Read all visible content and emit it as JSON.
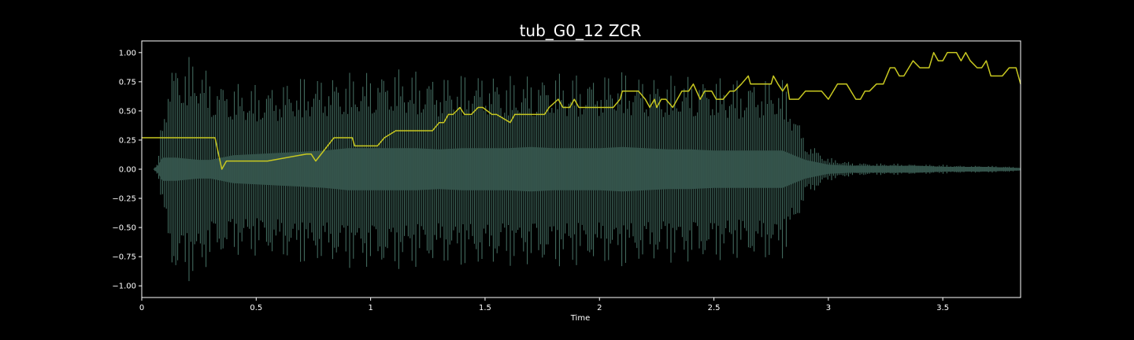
{
  "chart_data": {
    "type": "line",
    "title": "tub_G0_12 ZCR",
    "xlabel": "Time",
    "ylabel": "",
    "xlim": [
      0,
      3.84
    ],
    "ylim": [
      -1.1,
      1.1
    ],
    "x_ticks": [
      0,
      0.5,
      1,
      1.5,
      2,
      2.5,
      3,
      3.5
    ],
    "x_tick_labels": [
      "0",
      "0.5",
      "1",
      "1.5",
      "2",
      "2.5",
      "3",
      "3.5"
    ],
    "y_ticks": [
      1.0,
      0.75,
      0.5,
      0.25,
      0.0,
      -0.25,
      -0.5,
      -0.75,
      -1.0
    ],
    "y_tick_labels": [
      "1.00",
      "0.75",
      "0.50",
      "0.25",
      "0.00",
      "−0.25",
      "−0.50",
      "−0.75",
      "−1.00"
    ],
    "grid": false,
    "colors": {
      "background": "#000000",
      "frame": "#ffffff",
      "waveform": "#4f7f72",
      "waveform_core": "#35544c",
      "zcr": "#c8c820",
      "text": "#ffffff"
    },
    "series": [
      {
        "kind": "waveform-envelope",
        "x": [
          0.0,
          0.05,
          0.07,
          0.09,
          0.12,
          0.15,
          0.2,
          0.25,
          0.3,
          0.4,
          0.5,
          0.6,
          0.7,
          0.8,
          0.9,
          1.0,
          1.1,
          1.2,
          1.3,
          1.4,
          1.5,
          1.6,
          1.7,
          1.8,
          1.9,
          2.0,
          2.1,
          2.2,
          2.3,
          2.4,
          2.5,
          2.6,
          2.7,
          2.8,
          2.85,
          2.9,
          3.0,
          3.1,
          3.2,
          3.3,
          3.4,
          3.5,
          3.6,
          3.7,
          3.84
        ],
        "upper": [
          0.0,
          0.0,
          0.05,
          0.55,
          0.85,
          0.97,
          0.97,
          0.97,
          0.8,
          0.75,
          0.73,
          0.75,
          0.8,
          0.82,
          0.83,
          0.85,
          0.88,
          0.85,
          0.82,
          0.82,
          0.85,
          0.8,
          0.82,
          0.84,
          0.82,
          0.83,
          0.85,
          0.82,
          0.8,
          0.82,
          0.8,
          0.78,
          0.8,
          0.78,
          0.55,
          0.25,
          0.1,
          0.06,
          0.05,
          0.05,
          0.04,
          0.04,
          0.03,
          0.03,
          0.02
        ],
        "lower": [
          0.0,
          0.0,
          -0.05,
          -0.35,
          -0.8,
          -0.97,
          -0.97,
          -0.95,
          -0.8,
          -0.75,
          -0.75,
          -0.78,
          -0.82,
          -0.82,
          -0.85,
          -0.86,
          -0.88,
          -0.85,
          -0.84,
          -0.84,
          -0.86,
          -0.83,
          -0.84,
          -0.85,
          -0.84,
          -0.83,
          -0.85,
          -0.82,
          -0.8,
          -0.82,
          -0.8,
          -0.78,
          -0.8,
          -0.78,
          -0.55,
          -0.25,
          -0.1,
          -0.06,
          -0.05,
          -0.05,
          -0.04,
          -0.04,
          -0.03,
          -0.03,
          -0.02
        ],
        "core_upper": [
          0.0,
          0.0,
          0.03,
          0.1,
          0.1,
          0.1,
          0.09,
          0.08,
          0.08,
          0.12,
          0.13,
          0.14,
          0.15,
          0.16,
          0.18,
          0.18,
          0.18,
          0.18,
          0.17,
          0.18,
          0.18,
          0.18,
          0.19,
          0.18,
          0.18,
          0.18,
          0.19,
          0.18,
          0.17,
          0.17,
          0.16,
          0.16,
          0.16,
          0.16,
          0.12,
          0.08,
          0.04,
          0.03,
          0.03,
          0.03,
          0.03,
          0.02,
          0.02,
          0.02,
          0.01
        ]
      },
      {
        "kind": "zcr-line",
        "x": [
          0.0,
          0.32,
          0.35,
          0.37,
          0.55,
          0.72,
          0.74,
          0.76,
          0.84,
          0.92,
          0.93,
          1.03,
          1.06,
          1.11,
          1.27,
          1.3,
          1.32,
          1.34,
          1.36,
          1.39,
          1.41,
          1.42,
          1.44,
          1.47,
          1.49,
          1.53,
          1.55,
          1.61,
          1.63,
          1.65,
          1.68,
          1.71,
          1.76,
          1.78,
          1.82,
          1.84,
          1.87,
          1.89,
          1.91,
          1.99,
          2.04,
          2.06,
          2.09,
          2.1,
          2.13,
          2.17,
          2.2,
          2.22,
          2.24,
          2.25,
          2.27,
          2.29,
          2.32,
          2.36,
          2.39,
          2.41,
          2.44,
          2.46,
          2.49,
          2.51,
          2.54,
          2.57,
          2.59,
          2.62,
          2.65,
          2.66,
          2.68,
          2.7,
          2.75,
          2.76,
          2.78,
          2.8,
          2.82,
          2.83,
          2.85,
          2.87,
          2.9,
          2.92,
          2.97,
          3.0,
          3.04,
          3.08,
          3.12,
          3.14,
          3.16,
          3.18,
          3.21,
          3.24,
          3.27,
          3.29,
          3.31,
          3.33,
          3.37,
          3.4,
          3.42,
          3.44,
          3.46,
          3.48,
          3.5,
          3.52,
          3.56,
          3.58,
          3.6,
          3.62,
          3.65,
          3.67,
          3.69,
          3.71,
          3.73,
          3.76,
          3.79,
          3.82,
          3.84
        ],
        "y": [
          0.27,
          0.27,
          0.0,
          0.07,
          0.07,
          0.13,
          0.13,
          0.07,
          0.27,
          0.27,
          0.2,
          0.2,
          0.27,
          0.33,
          0.33,
          0.4,
          0.4,
          0.47,
          0.47,
          0.53,
          0.47,
          0.47,
          0.47,
          0.53,
          0.53,
          0.47,
          0.47,
          0.4,
          0.47,
          0.47,
          0.47,
          0.47,
          0.47,
          0.53,
          0.6,
          0.53,
          0.53,
          0.6,
          0.53,
          0.53,
          0.53,
          0.53,
          0.6,
          0.67,
          0.67,
          0.67,
          0.6,
          0.53,
          0.6,
          0.53,
          0.6,
          0.6,
          0.53,
          0.67,
          0.67,
          0.73,
          0.6,
          0.67,
          0.67,
          0.6,
          0.6,
          0.67,
          0.67,
          0.73,
          0.8,
          0.73,
          0.73,
          0.73,
          0.73,
          0.8,
          0.73,
          0.67,
          0.73,
          0.6,
          0.6,
          0.6,
          0.67,
          0.67,
          0.67,
          0.6,
          0.73,
          0.73,
          0.6,
          0.6,
          0.67,
          0.67,
          0.73,
          0.73,
          0.87,
          0.87,
          0.8,
          0.8,
          0.93,
          0.87,
          0.87,
          0.87,
          1.0,
          0.93,
          0.93,
          1.0,
          1.0,
          0.93,
          1.0,
          0.93,
          0.87,
          0.87,
          0.93,
          0.8,
          0.8,
          0.8,
          0.87,
          0.87,
          0.73
        ]
      }
    ]
  }
}
